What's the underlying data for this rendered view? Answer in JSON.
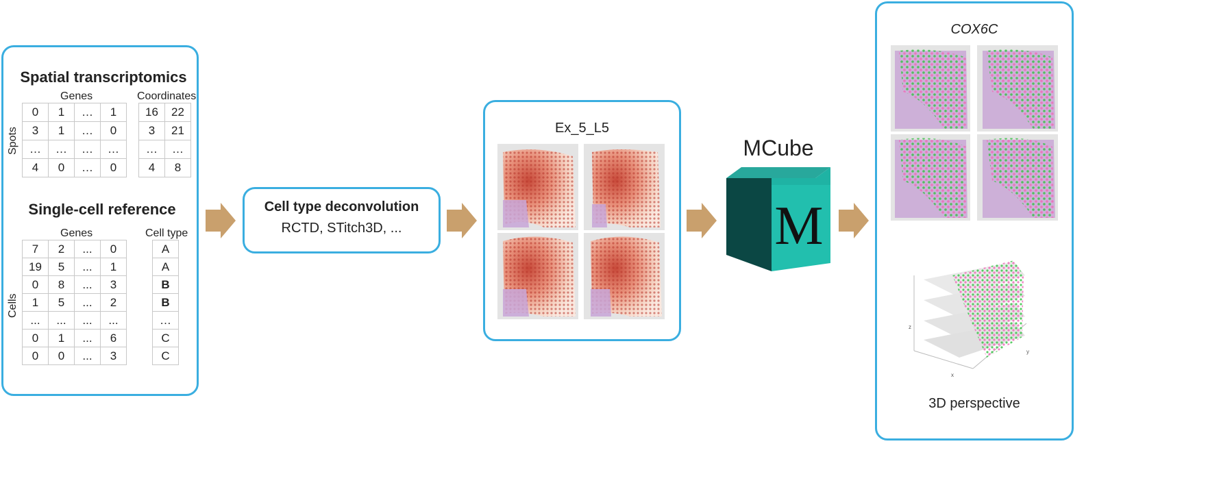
{
  "panel1": {
    "st_title": "Spatial transcriptomics",
    "genes_label": "Genes",
    "coords_label": "Coordinates",
    "spots_label": "Spots",
    "st_genes": [
      [
        "0",
        "1",
        "…",
        "1"
      ],
      [
        "3",
        "1",
        "…",
        "0"
      ],
      [
        "…",
        "…",
        "…",
        "…"
      ],
      [
        "4",
        "0",
        "…",
        "0"
      ]
    ],
    "st_coords": [
      [
        "16",
        "22"
      ],
      [
        "3",
        "21"
      ],
      [
        "…",
        "…"
      ],
      [
        "4",
        "8"
      ]
    ],
    "sc_title": "Single-cell reference",
    "sc_genes_label": "Genes",
    "celltype_label": "Cell type",
    "cells_label": "Cells",
    "sc_genes": [
      [
        "7",
        "2",
        "...",
        "0"
      ],
      [
        "19",
        "5",
        "...",
        "1"
      ],
      [
        "0",
        "8",
        "...",
        "3"
      ],
      [
        "1",
        "5",
        "...",
        "2"
      ],
      [
        "...",
        "...",
        "...",
        "..."
      ],
      [
        "0",
        "1",
        "...",
        "6"
      ],
      [
        "0",
        "0",
        "...",
        "3"
      ]
    ],
    "sc_types": [
      "A",
      "A",
      "B",
      "B",
      "…",
      "C",
      "C"
    ]
  },
  "panel2": {
    "title": "Cell type deconvolution",
    "methods": "RCTD, STitch3D, ..."
  },
  "panel3": {
    "title": "Ex_5_L5"
  },
  "mcube": {
    "title": "MCube",
    "letter": "M"
  },
  "panel4": {
    "title": "COX6C",
    "axis_x": "x",
    "axis_y": "y",
    "axis_z": "z",
    "caption": "3D perspective"
  },
  "colors": {
    "border": "#3aaee0",
    "arrow": "#c9a06d",
    "cube_front": "#22bfae",
    "cube_side": "#0b4744",
    "cube_top": "#28a89c"
  }
}
